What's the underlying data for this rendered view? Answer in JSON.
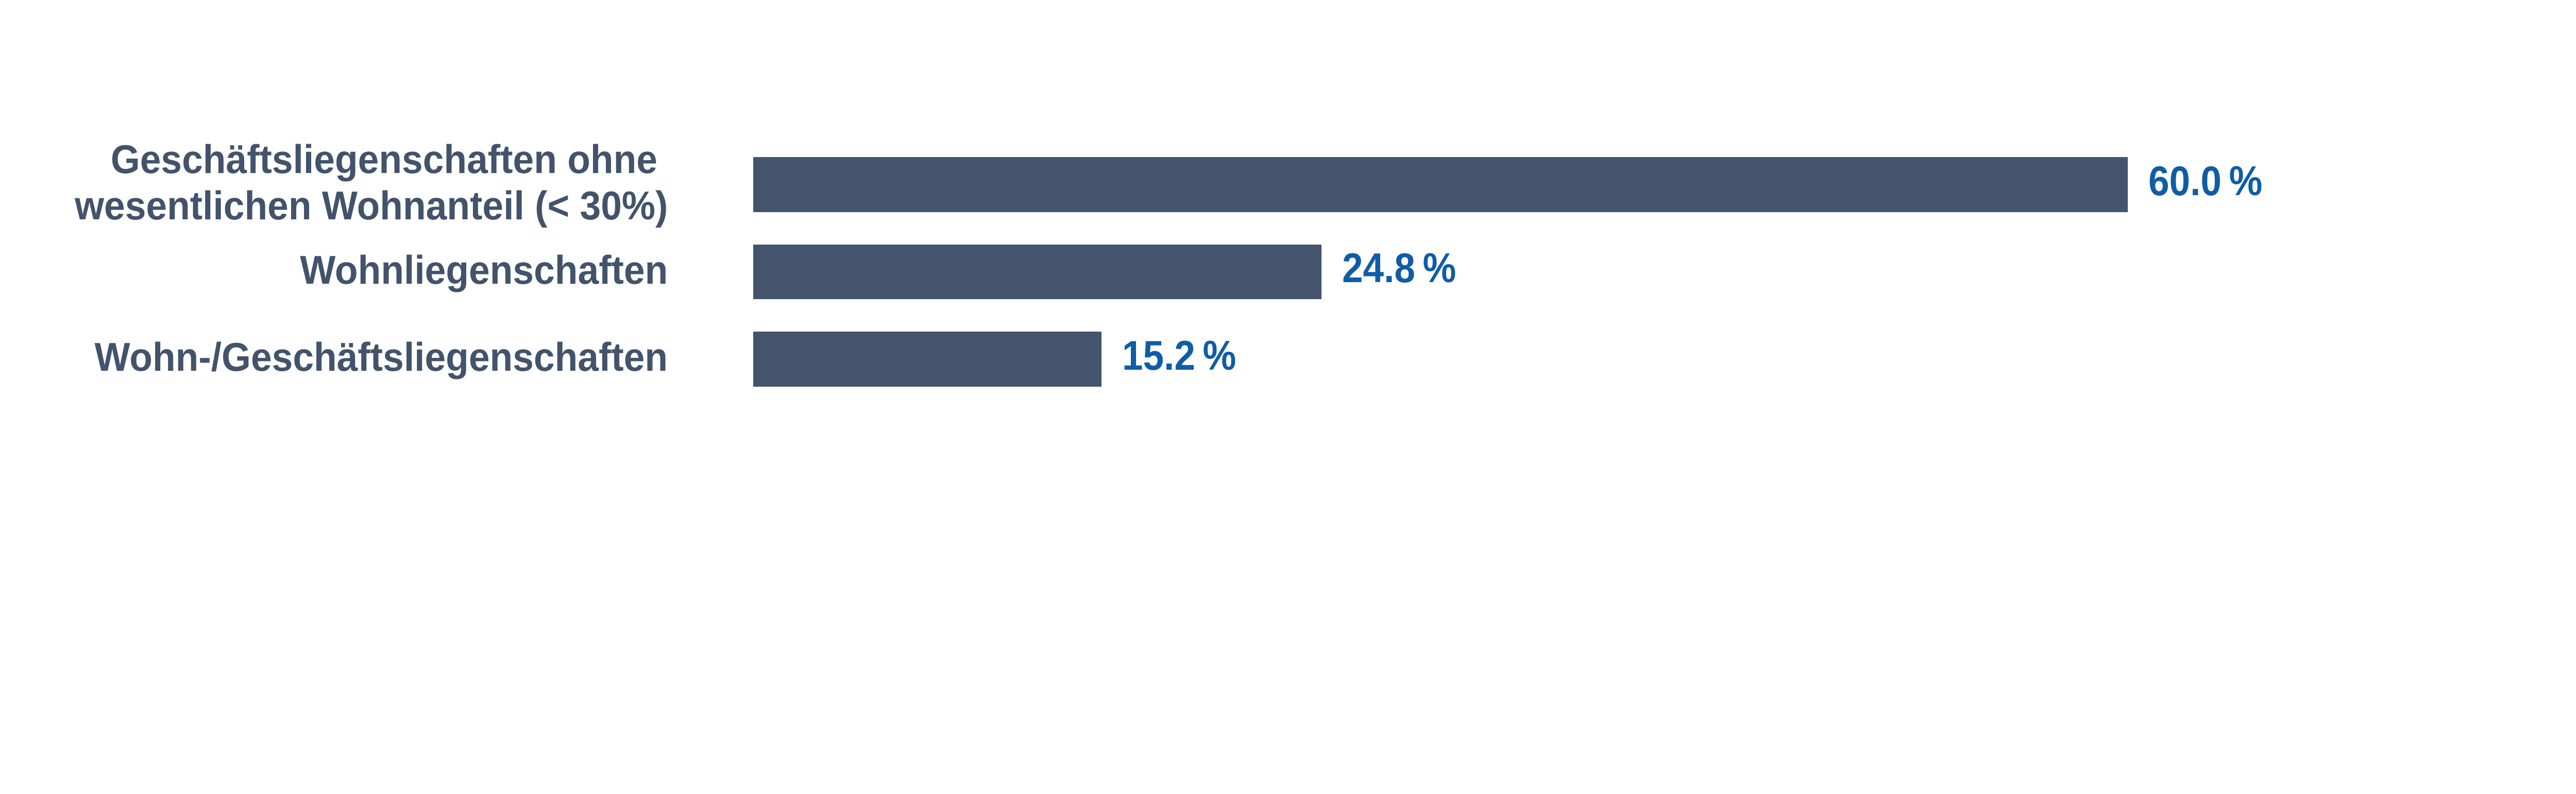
{
  "chart_data": {
    "type": "bar",
    "orientation": "horizontal",
    "title": "",
    "xlabel": "",
    "ylabel": "",
    "categories": [
      "Geschäftsliegenschaften ohne \nwesentlichen Wohnanteil (< 30%)",
      "Wohnliegenschaften",
      "Wohn-/Geschäftsliegenschaften"
    ],
    "values": [
      60.0,
      24.8,
      15.2
    ],
    "value_labels": [
      "60.0 %",
      "24.8 %",
      "15.2 %"
    ],
    "xlim": [
      0,
      100
    ],
    "grid": false,
    "legend": false,
    "bar_color": "#43546C",
    "category_label_color": "#42536B",
    "value_label_color": "#0E5DA6",
    "background_color": "#FFFFFF"
  }
}
